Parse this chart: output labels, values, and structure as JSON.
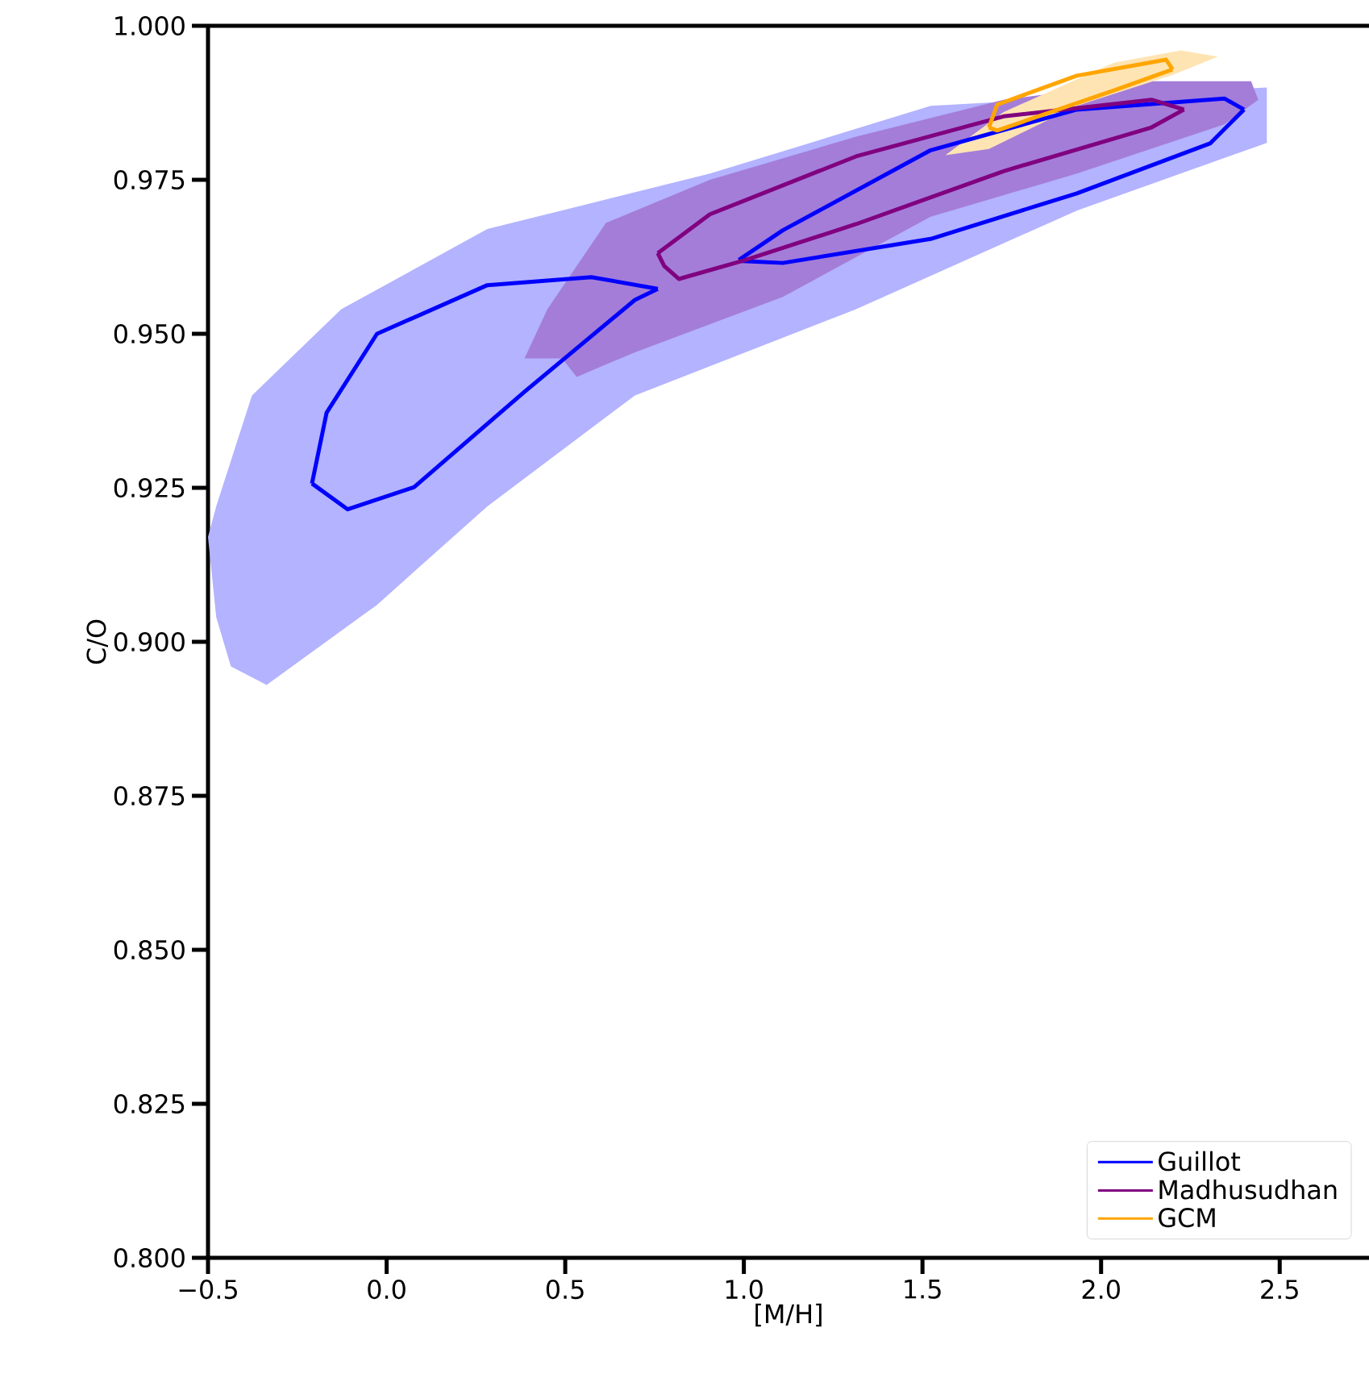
{
  "chart_data": {
    "type": "line",
    "xlabel": "[M/H]",
    "ylabel": "C/O",
    "xlim": [
      -0.5,
      2.75
    ],
    "ylim": [
      0.8,
      1.0
    ],
    "xticks": [
      {
        "value": -0.5,
        "label": "−0.5"
      },
      {
        "value": 0.0,
        "label": "0.0"
      },
      {
        "value": 0.5,
        "label": "0.5"
      },
      {
        "value": 1.0,
        "label": "1.0"
      },
      {
        "value": 1.5,
        "label": "1.5"
      },
      {
        "value": 2.0,
        "label": "2.0"
      },
      {
        "value": 2.5,
        "label": "2.5"
      }
    ],
    "yticks": [
      {
        "value": 0.8,
        "label": "0.800"
      },
      {
        "value": 0.825,
        "label": "0.825"
      },
      {
        "value": 0.85,
        "label": "0.850"
      },
      {
        "value": 0.875,
        "label": "0.875"
      },
      {
        "value": 0.9,
        "label": "0.900"
      },
      {
        "value": 0.925,
        "label": "0.925"
      },
      {
        "value": 0.95,
        "label": "0.950"
      },
      {
        "value": 0.975,
        "label": "0.975"
      },
      {
        "value": 1.0,
        "label": "1.000"
      }
    ],
    "legend": "bottom right",
    "series": [
      {
        "type": "area",
        "color": "#b3b3ff",
        "x": [
          -0.5,
          -0.477,
          -0.377,
          -0.127,
          0.282,
          0.905,
          1.523,
          2.464,
          2.464,
          1.932,
          1.314,
          0.695,
          0.282,
          -0.027,
          -0.336,
          -0.436,
          -0.477
        ],
        "values": [
          0.917,
          0.922,
          0.94,
          0.954,
          0.967,
          0.976,
          0.987,
          0.99,
          0.981,
          0.97,
          0.954,
          0.94,
          0.922,
          0.906,
          0.893,
          0.896,
          0.904
        ]
      },
      {
        "type": "area",
        "color": "#a47dd9",
        "x": [
          0.386,
          0.45,
          0.614,
          0.905,
          1.314,
          1.727,
          2.141,
          2.42,
          2.44,
          2.345,
          1.932,
          1.523,
          1.109,
          0.695,
          0.532,
          0.491
        ],
        "values": [
          0.946,
          0.954,
          0.968,
          0.975,
          0.982,
          0.988,
          0.991,
          0.991,
          0.988,
          0.984,
          0.976,
          0.969,
          0.956,
          0.947,
          0.943,
          0.946
        ]
      },
      {
        "type": "area",
        "color": "#ffe4b3",
        "x": [
          1.564,
          1.727,
          2.036,
          2.223,
          2.327,
          2.2,
          1.932,
          1.686
        ],
        "values": [
          0.979,
          0.986,
          0.994,
          0.996,
          0.995,
          0.992,
          0.987,
          0.98
        ]
      },
      {
        "type": "line",
        "name": "Guillot",
        "color": "#0000ff",
        "x": [
          -0.209,
          -0.168,
          -0.027,
          0.282,
          0.573,
          0.759
        ],
        "values": [
          0.9257,
          0.9372,
          0.95,
          0.9579,
          0.9592,
          0.9573
        ]
      },
      {
        "type": "line",
        "color": "#0000ff",
        "x": [
          -0.209,
          -0.109,
          0.077,
          0.386,
          0.695,
          0.759
        ],
        "values": [
          0.9257,
          0.9215,
          0.9251,
          0.9406,
          0.9555,
          0.9573
        ]
      },
      {
        "type": "line",
        "color": "#0000ff",
        "x": [
          0.986,
          1.109,
          1.523,
          1.932,
          2.345,
          2.4
        ],
        "values": [
          0.962,
          0.9668,
          0.9798,
          0.9864,
          0.9882,
          0.9864
        ]
      },
      {
        "type": "line",
        "color": "#0000ff",
        "x": [
          0.986,
          0.995,
          1.109,
          1.523,
          1.932,
          2.305,
          2.4
        ],
        "values": [
          0.962,
          0.9618,
          0.9615,
          0.9654,
          0.9728,
          0.9809,
          0.9864
        ]
      },
      {
        "type": "line",
        "name": "Madhusudhan",
        "color": "#800080",
        "x": [
          0.759,
          0.905,
          1.314,
          1.727,
          2.141,
          2.232
        ],
        "values": [
          0.9631,
          0.9694,
          0.9788,
          0.9853,
          0.988,
          0.9864
        ]
      },
      {
        "type": "line",
        "color": "#800080",
        "x": [
          0.759,
          0.777,
          0.818,
          1.005,
          1.314,
          1.727,
          2.141,
          2.232
        ],
        "values": [
          0.9631,
          0.961,
          0.9589,
          0.962,
          0.9678,
          0.9764,
          0.9835,
          0.9864
        ]
      },
      {
        "type": "line",
        "name": "GCM",
        "color": "#ffa500",
        "x": [
          1.686,
          1.709,
          1.932,
          2.182,
          2.2
        ],
        "values": [
          0.9835,
          0.9872,
          0.9919,
          0.9945,
          0.9929
        ]
      },
      {
        "type": "line",
        "color": "#ffa500",
        "x": [
          1.686,
          1.709,
          2.036,
          2.2
        ],
        "values": [
          0.9835,
          0.983,
          0.9895,
          0.9929
        ]
      }
    ]
  }
}
